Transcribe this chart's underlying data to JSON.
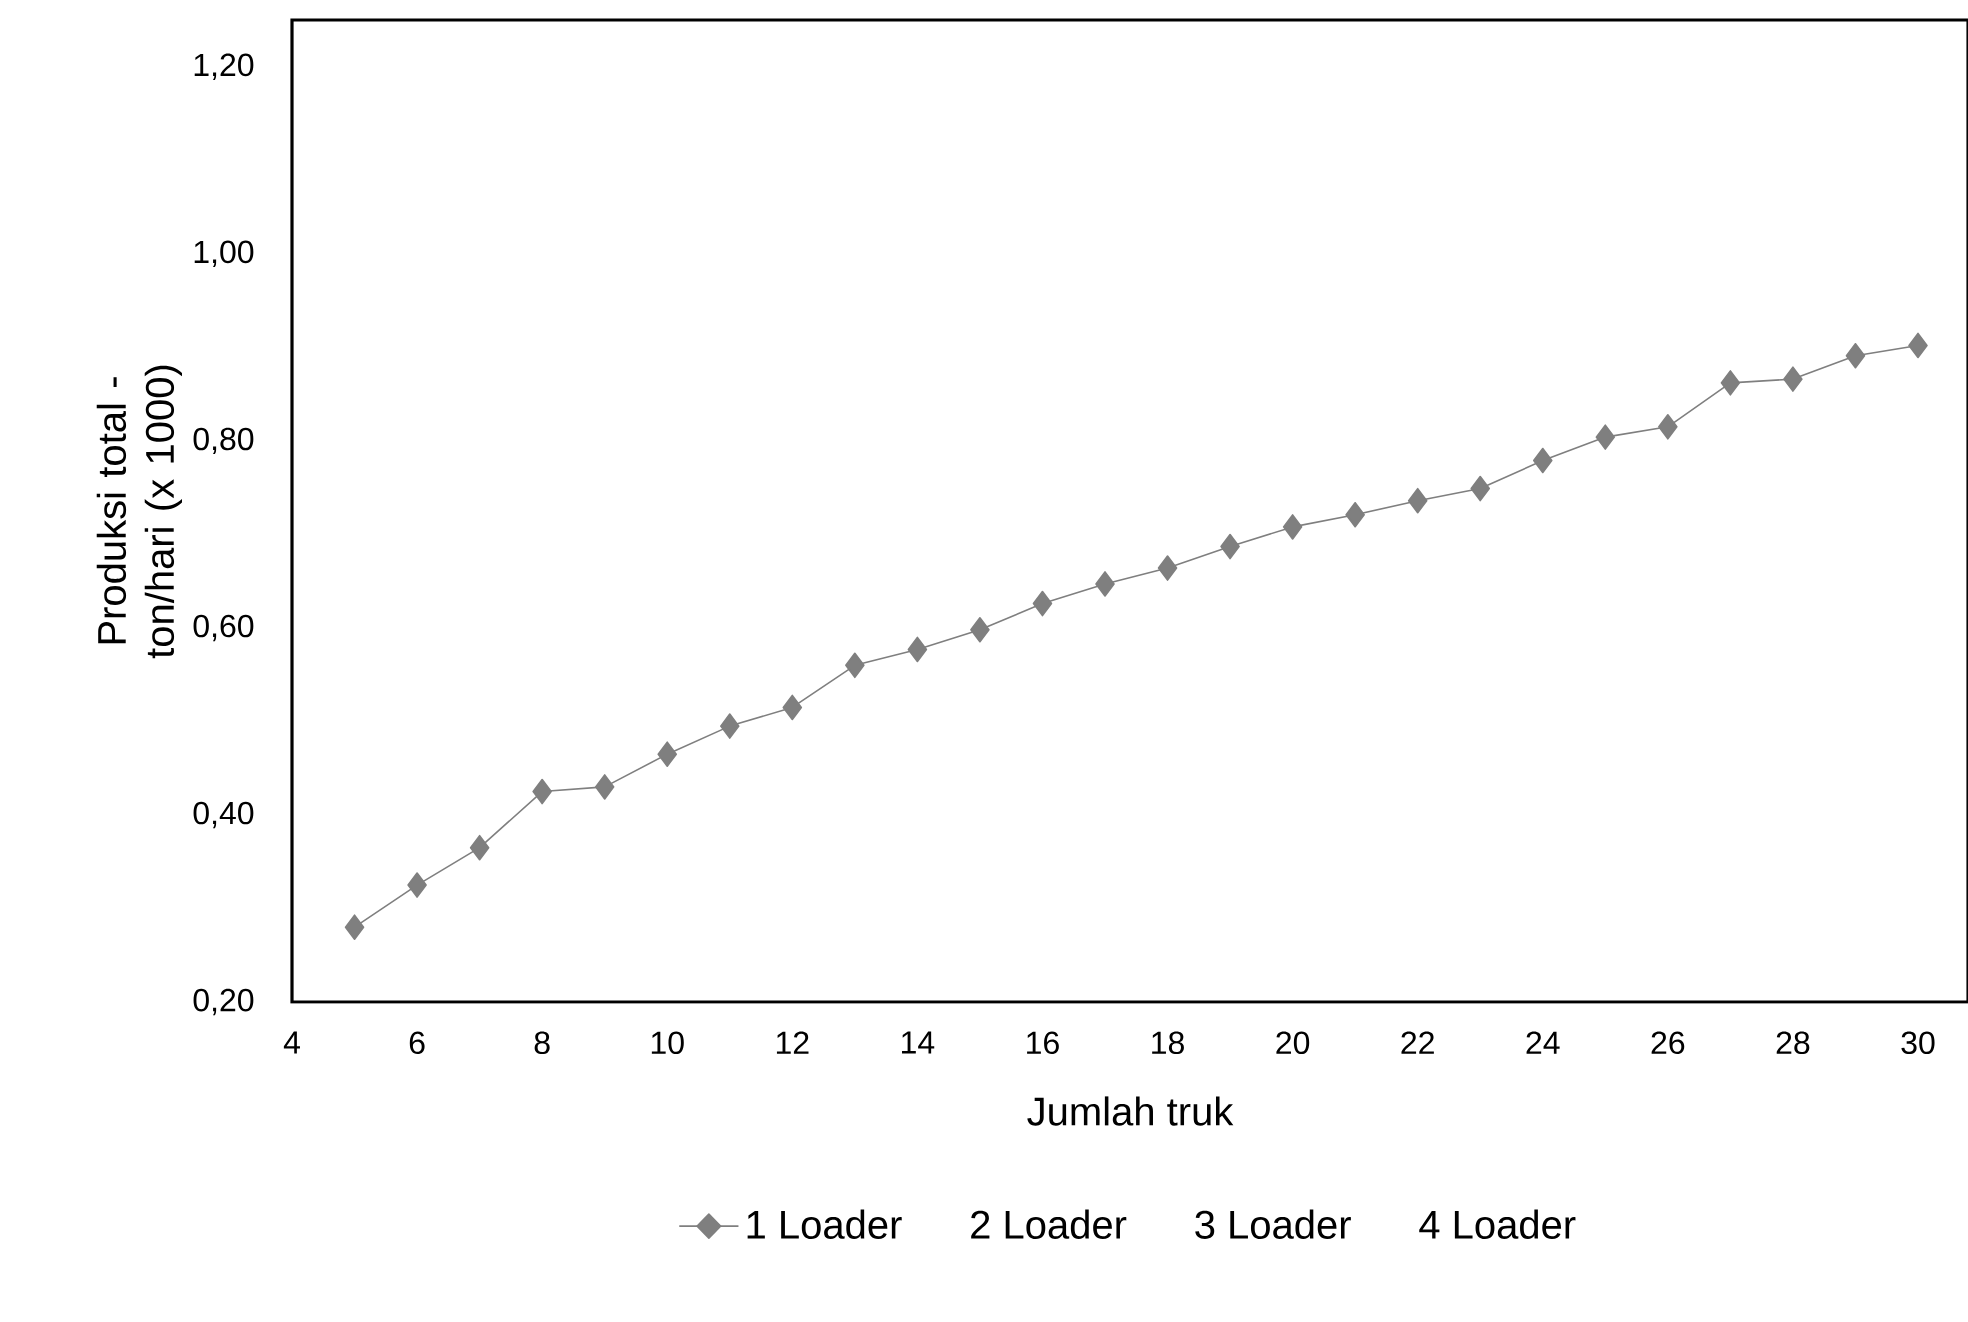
{
  "chart_data": {
    "type": "line",
    "xlabel": "Jumlah truk",
    "ylabel": "Produksi total - ton/hari (x 1000)",
    "x": [
      5,
      6,
      7,
      8,
      9,
      10,
      11,
      12,
      13,
      14,
      15,
      16,
      17,
      18,
      19,
      20,
      21,
      22,
      23,
      24,
      25,
      26,
      27,
      28,
      29,
      30
    ],
    "series": [
      {
        "name": "1 Loader",
        "color": "#7f7f7f",
        "values": [
          0.28,
          0.325,
          0.365,
          0.425,
          0.43,
          0.465,
          0.495,
          0.515,
          0.56,
          0.577,
          0.598,
          0.626,
          0.647,
          0.664,
          0.687,
          0.708,
          0.721,
          0.736,
          0.749,
          0.779,
          0.804,
          0.815,
          0.862,
          0.866,
          0.891,
          0.902
        ]
      },
      {
        "name": "2 Loader",
        "values": [
          null,
          null,
          null,
          null,
          null,
          null,
          null,
          null,
          null,
          null,
          null,
          null,
          null,
          null,
          null,
          null,
          null,
          null,
          null,
          null,
          null,
          null,
          null,
          null,
          null,
          null
        ]
      },
      {
        "name": "3 Loader",
        "values": [
          null,
          null,
          null,
          null,
          null,
          null,
          null,
          null,
          null,
          null,
          null,
          null,
          null,
          null,
          null,
          null,
          null,
          null,
          null,
          null,
          null,
          null,
          null,
          null,
          null,
          null
        ]
      },
      {
        "name": "4 Loader",
        "values": [
          null,
          null,
          null,
          null,
          null,
          null,
          null,
          null,
          null,
          null,
          null,
          null,
          null,
          null,
          null,
          null,
          null,
          null,
          null,
          null,
          null,
          null,
          null,
          null,
          null,
          null
        ]
      }
    ],
    "xlim": [
      4,
      30.8
    ],
    "ylim": [
      0.2,
      1.25
    ],
    "xticks": [
      4,
      6,
      8,
      10,
      12,
      14,
      16,
      18,
      20,
      22,
      24,
      26,
      28,
      30
    ],
    "yticks": [
      {
        "value": 0.2,
        "label": "0,20"
      },
      {
        "value": 0.4,
        "label": "0,40"
      },
      {
        "value": 0.6,
        "label": "0,60"
      },
      {
        "value": 0.8,
        "label": "0,80"
      },
      {
        "value": 1.0,
        "label": "1,00"
      },
      {
        "value": 1.2,
        "label": "1,20"
      }
    ],
    "grid": false,
    "legend": "bottom",
    "marker": "diamond",
    "line_style": "solid"
  }
}
